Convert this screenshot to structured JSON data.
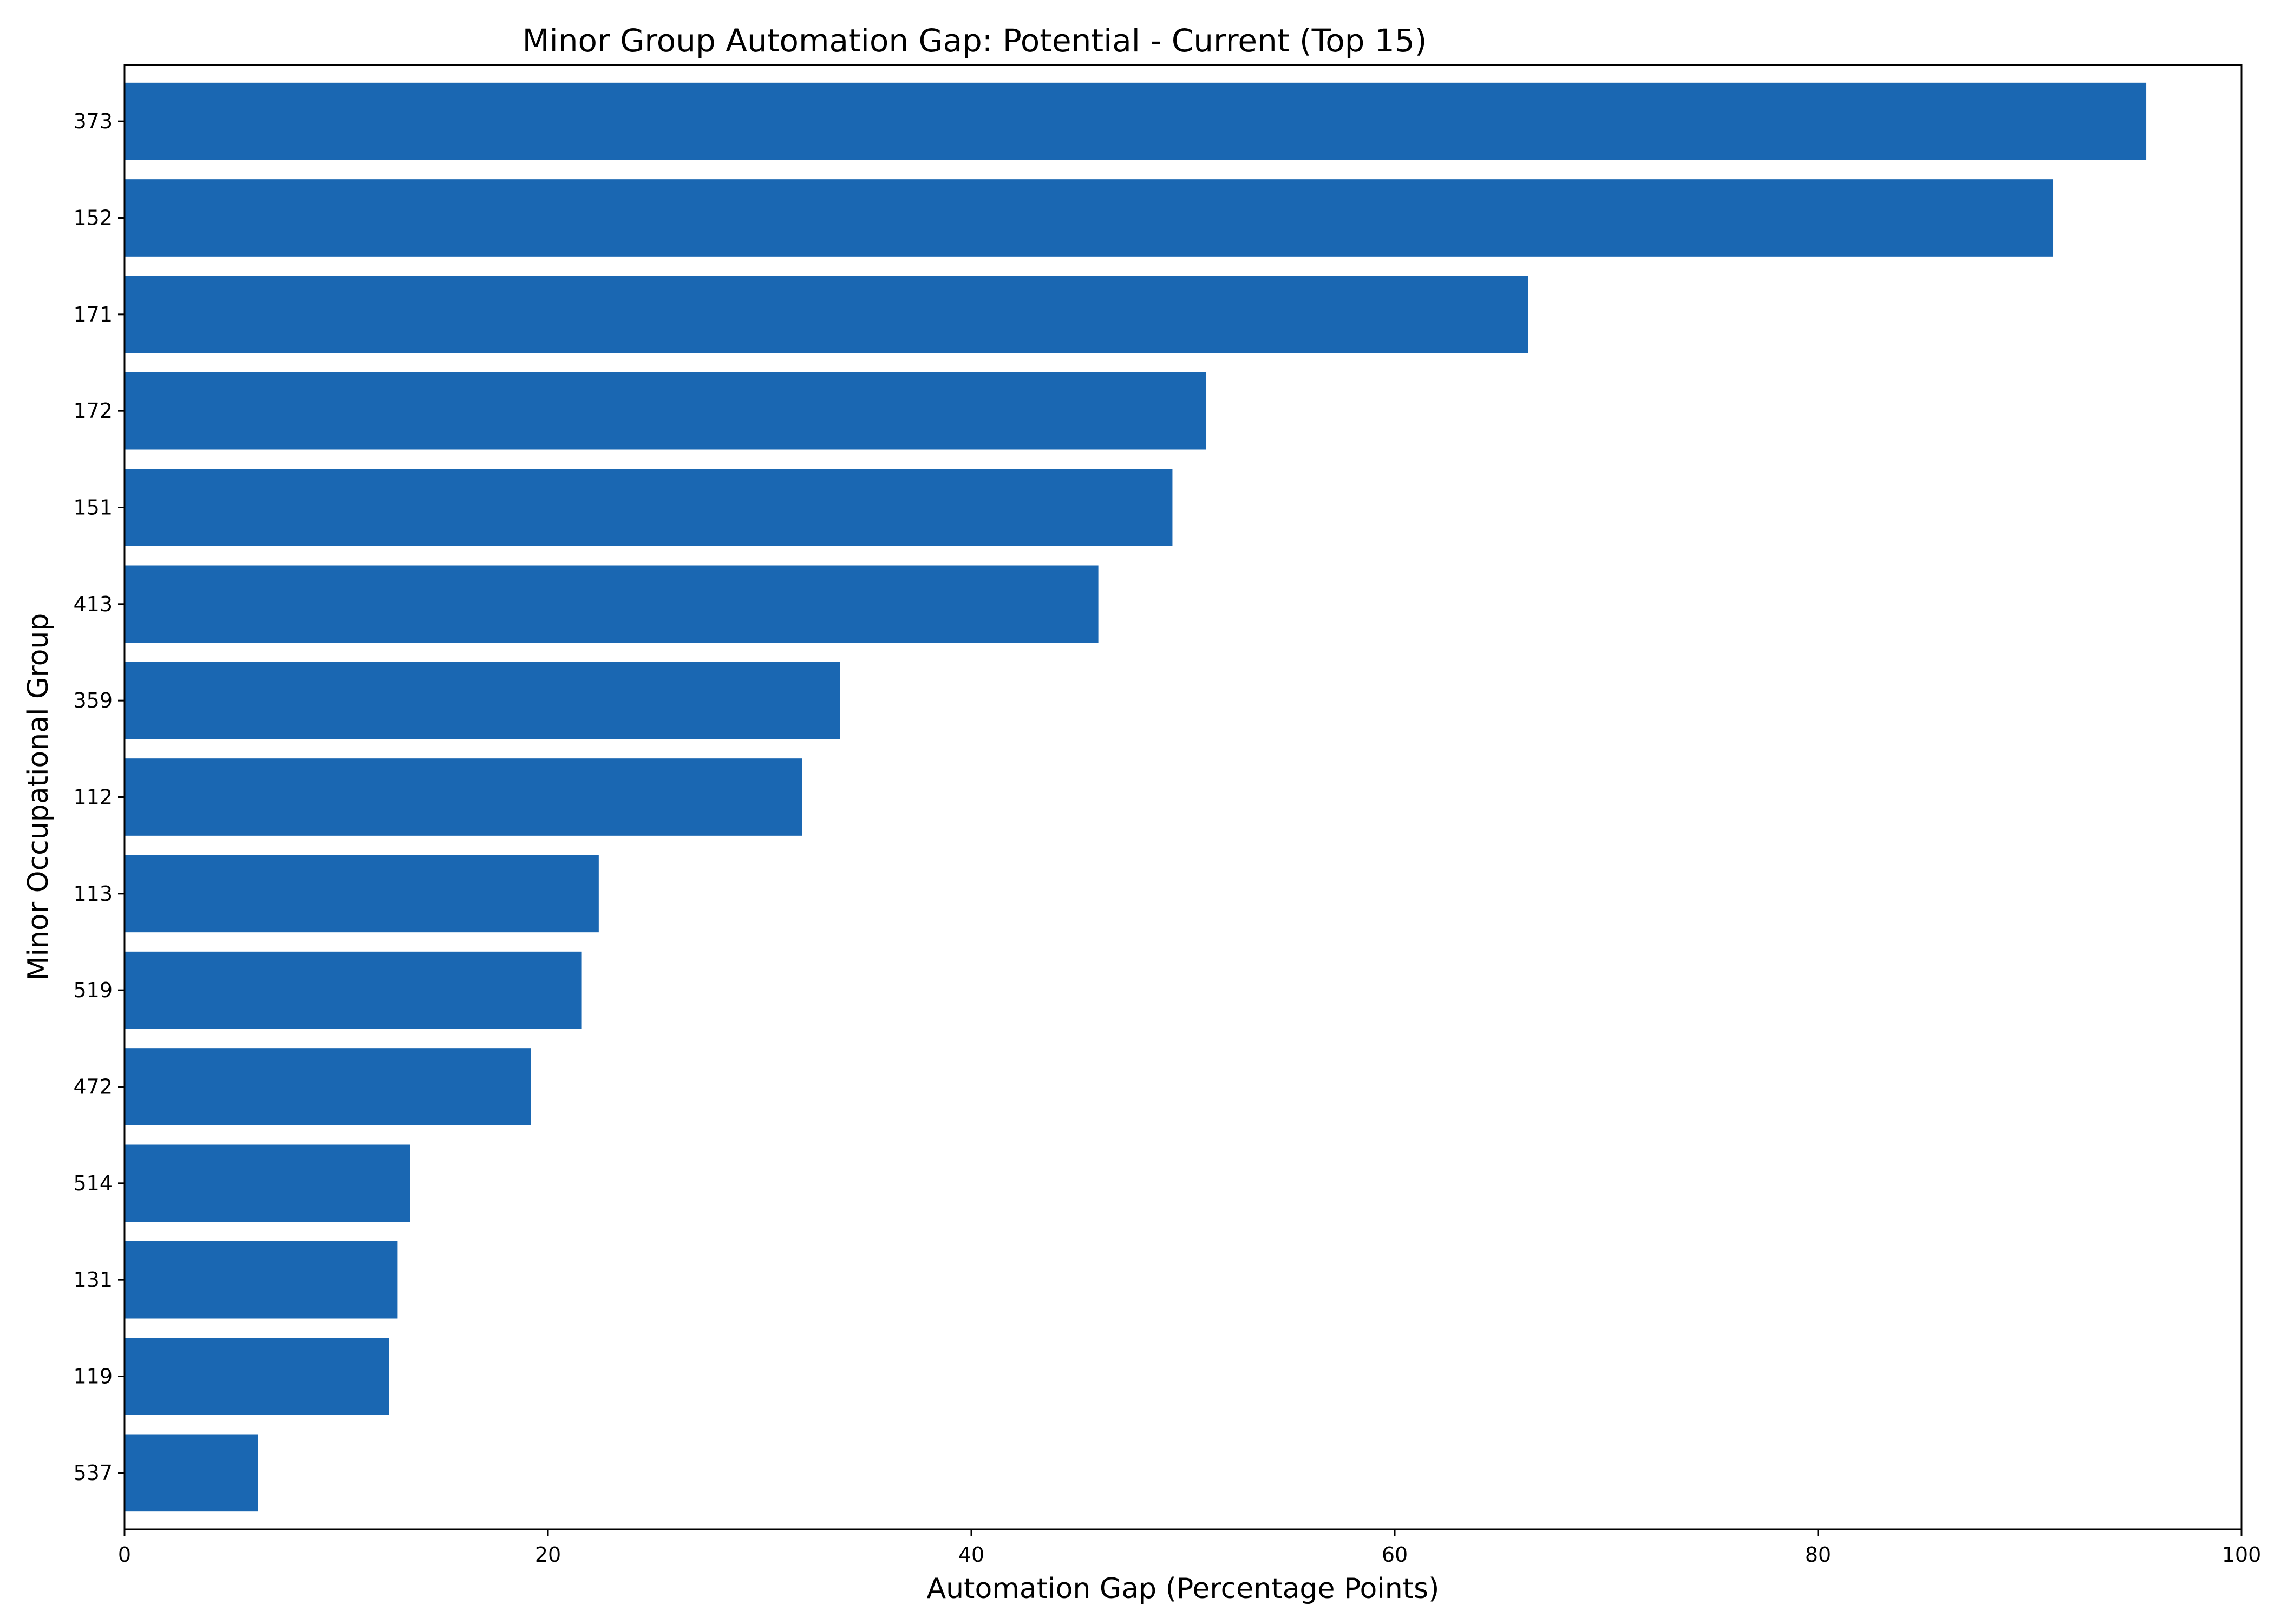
{
  "chart_data": {
    "type": "bar",
    "orientation": "horizontal",
    "title": "Minor Group Automation Gap: Potential - Current (Top 15)",
    "xlabel": "Automation Gap (Percentage Points)",
    "ylabel": "Minor Occupational Group",
    "categories": [
      "373",
      "152",
      "171",
      "172",
      "151",
      "413",
      "359",
      "112",
      "113",
      "519",
      "472",
      "514",
      "131",
      "119",
      "537"
    ],
    "values": [
      95.5,
      91.1,
      66.3,
      51.1,
      49.5,
      46.0,
      33.8,
      32.0,
      22.4,
      21.6,
      19.2,
      13.5,
      12.9,
      12.5,
      6.3
    ],
    "xlim": [
      0,
      100
    ],
    "xticks": [
      "0",
      "20",
      "40",
      "60",
      "80",
      "100"
    ],
    "xtick_values": [
      0,
      20,
      40,
      60,
      80,
      100
    ],
    "grid": false,
    "bar_color": "#1a67b2"
  }
}
